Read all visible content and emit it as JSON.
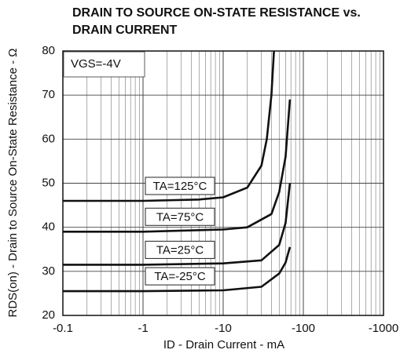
{
  "chart_data": {
    "type": "line",
    "title": [
      "DRAIN TO SOURCE ON-STATE RESISTANCE vs.",
      "DRAIN CURRENT"
    ],
    "xlabel": "ID - Drain Current - mA",
    "ylabel": "RDS(on) - Drain to Source On-State Resistance - Ω",
    "annotation": "VGS=-4V",
    "xscale": "log",
    "xlim": [
      -0.1,
      -1000
    ],
    "xticks": [
      -0.1,
      -1,
      -10,
      -100,
      -1000
    ],
    "ylim": [
      20,
      80
    ],
    "yticks": [
      20,
      30,
      40,
      50,
      60,
      70,
      80
    ],
    "grid": true,
    "minor_grid": true,
    "series": [
      {
        "name": "TA=125°C",
        "color": "#111111",
        "x": [
          -0.1,
          -1,
          -5,
          -10,
          -20,
          -30,
          -35,
          -40,
          -43
        ],
        "values": [
          46,
          46,
          46.3,
          46.8,
          49,
          54,
          60,
          70,
          80
        ]
      },
      {
        "name": "TA=75°C",
        "color": "#111111",
        "x": [
          -0.1,
          -1,
          -10,
          -20,
          -40,
          -50,
          -60,
          -68
        ],
        "values": [
          39,
          39,
          39.5,
          40,
          43,
          48,
          56,
          69
        ]
      },
      {
        "name": "TA=25°C",
        "color": "#111111",
        "x": [
          -0.1,
          -1,
          -10,
          -30,
          -50,
          -60,
          -68
        ],
        "values": [
          31.5,
          31.5,
          31.8,
          32.5,
          36,
          41,
          50
        ]
      },
      {
        "name": "TA=-25°C",
        "color": "#111111",
        "x": [
          -0.1,
          -1,
          -10,
          -30,
          -50,
          -60,
          -68
        ],
        "values": [
          25.5,
          25.5,
          25.7,
          26.5,
          29.5,
          32,
          35.5
        ]
      }
    ]
  }
}
